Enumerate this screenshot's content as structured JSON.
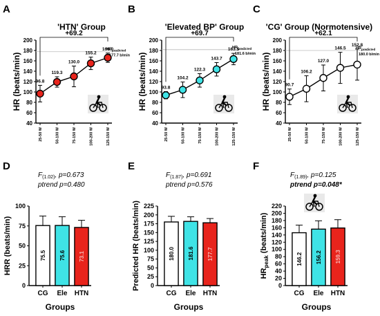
{
  "colors": {
    "htn": "#e8241c",
    "ele": "#3fe3e6",
    "cg": "#ffffff",
    "axis": "#000000",
    "predicted_line": "#bbbbbb"
  },
  "icons": {
    "bike": "bicycle-icon"
  },
  "chart_data": [
    {
      "panel": "A",
      "type": "line",
      "title": "'HTN' Group",
      "ylabel": "HR (beats/min)",
      "ylim": [
        40,
        200
      ],
      "yticks": [
        40,
        60,
        80,
        100,
        120,
        140,
        160,
        180,
        200
      ],
      "categories": [
        "25-50 W",
        "50-100 W",
        "75-150 W",
        "100-200 W",
        "125-150 W"
      ],
      "values": [
        96.8,
        119.3,
        130.0,
        155.2,
        166.0
      ],
      "errors": [
        16,
        10,
        20,
        12,
        9
      ],
      "value_labels": [
        "96.8",
        "119.3",
        "130.0",
        "155.2",
        "166.0"
      ],
      "color_key": "htn",
      "delta_label": "+69.2",
      "predicted": {
        "value": 177.7,
        "label_main": "HR",
        "label_sub": "predicted",
        "label_value": "177.7 b/min"
      }
    },
    {
      "panel": "B",
      "type": "line",
      "title": "'Elevated BP' Group",
      "ylabel": "HR (beats/min)",
      "ylim": [
        40,
        200
      ],
      "yticks": [
        40,
        60,
        80,
        100,
        120,
        140,
        160,
        180,
        200
      ],
      "categories": [
        "25-50 W",
        "50-100 W",
        "75-150 W",
        "100-200 W",
        "125-150 W"
      ],
      "values": [
        93.8,
        104.2,
        122.3,
        143.7,
        163.5
      ],
      "errors": [
        7,
        15,
        13,
        13,
        11
      ],
      "value_labels": [
        "93.8",
        "104.2",
        "122.3",
        "143.7",
        "163.5"
      ],
      "color_key": "ele",
      "delta_label": "+69.7",
      "predicted": {
        "value": 181.6,
        "label_main": "HR",
        "label_sub": "predicted",
        "label_value": "181.6 b/min"
      }
    },
    {
      "panel": "C",
      "type": "line",
      "title": "'CG' Group (Normotensive)",
      "ylabel": "HR (beats/min)",
      "ylim": [
        40,
        200
      ],
      "yticks": [
        40,
        60,
        80,
        100,
        120,
        140,
        160,
        180,
        200
      ],
      "categories": [
        "25-50 W",
        "50-100 W",
        "75-150 W",
        "100-200 W",
        "125-150 W"
      ],
      "values": [
        90.7,
        106.2,
        127.0,
        146.5,
        152.8
      ],
      "errors": [
        15,
        25,
        25,
        30,
        30
      ],
      "value_labels": [
        "90.7",
        "106.2",
        "127.0",
        "146.5",
        "152.8"
      ],
      "color_key": "cg",
      "delta_label": "+62.1",
      "predicted": {
        "value": 180.0,
        "label_main": "HR",
        "label_sub": "predicted",
        "label_value": "180.0 b/min"
      }
    },
    {
      "panel": "D",
      "type": "bar",
      "ylabel_main": "HRR (beats/min)",
      "ylabel_sub": "",
      "ylim": [
        0,
        100
      ],
      "yticks": [
        0,
        25,
        50,
        75,
        100
      ],
      "xlabel": "Groups",
      "categories": [
        "CG",
        "Ele",
        "HTN"
      ],
      "values": [
        75.5,
        75.6,
        73.1
      ],
      "errors": [
        12,
        11,
        9
      ],
      "value_labels": [
        "75.5",
        "75.6",
        "73.1"
      ],
      "color_keys": [
        "cg",
        "ele",
        "htn"
      ],
      "stat_F_main": "F",
      "stat_F_sub": "(1.02)",
      "stat_F_rest": ", p=0.673",
      "stat_trend": "ptrend p=0.480",
      "stat_trend_bold": false
    },
    {
      "panel": "E",
      "type": "bar",
      "ylabel_main": "Predicted HR (beats/min)",
      "ylabel_sub": "",
      "ylim": [
        0,
        225
      ],
      "yticks": [
        0,
        25,
        50,
        75,
        100,
        125,
        150,
        175,
        200,
        225
      ],
      "xlabel": "Groups",
      "categories": [
        "CG",
        "Ele",
        "HTN"
      ],
      "values": [
        180.0,
        181.6,
        177.7
      ],
      "errors": [
        16,
        13,
        12
      ],
      "value_labels": [
        "180.0",
        "181.6",
        "177.7"
      ],
      "color_keys": [
        "cg",
        "ele",
        "htn"
      ],
      "stat_F_main": "F",
      "stat_F_sub": "(1.87)",
      "stat_F_rest": ", p=0.691",
      "stat_trend": "ptrend p=0.576",
      "stat_trend_bold": false
    },
    {
      "panel": "F",
      "type": "bar",
      "ylabel_main": "HR",
      "ylabel_sub": "peak",
      "ylabel_rest": " (beats/min)",
      "ylim": [
        0,
        220
      ],
      "yticks": [
        0,
        20,
        40,
        60,
        80,
        100,
        120,
        140,
        160,
        180,
        200,
        220
      ],
      "xlabel": "Groups",
      "categories": [
        "CG",
        "Ele",
        "HTN"
      ],
      "values": [
        146.2,
        156.2,
        159.3
      ],
      "errors": [
        21,
        23,
        23
      ],
      "value_labels": [
        "146.2",
        "156.2",
        "159.3"
      ],
      "color_keys": [
        "cg",
        "ele",
        "htn"
      ],
      "stat_F_main": "F",
      "stat_F_sub": "(1.89)",
      "stat_F_rest": ", p=0.125",
      "stat_trend": "ptrend p=0.048*",
      "stat_trend_bold": true
    }
  ]
}
